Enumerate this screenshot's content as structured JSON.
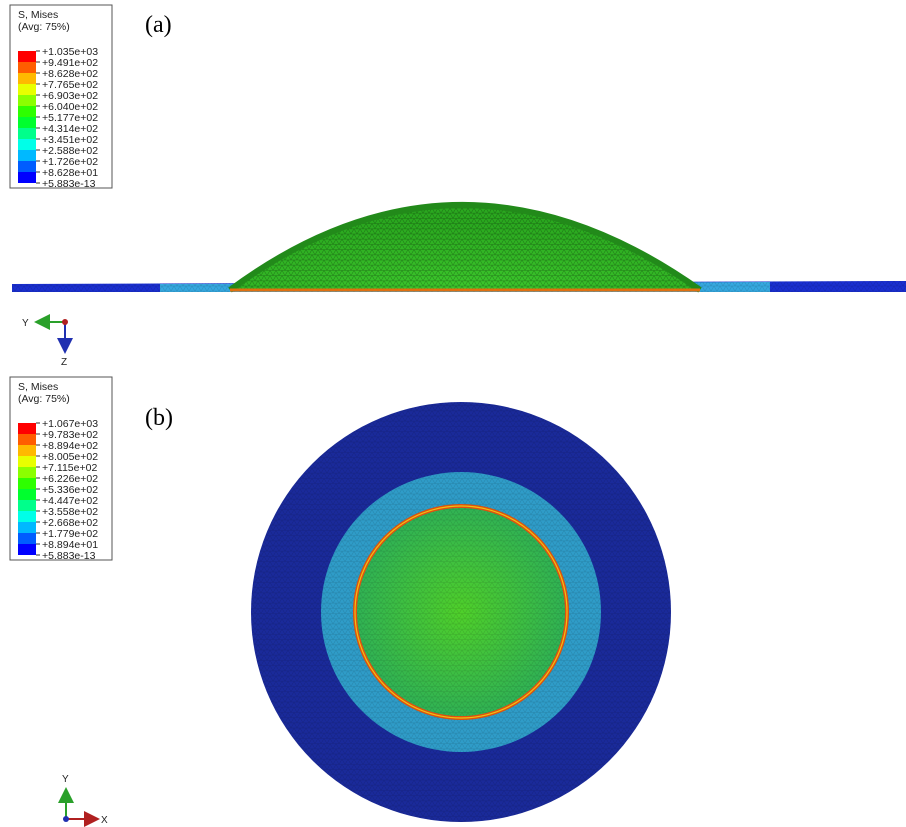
{
  "panels": [
    {
      "label": "(a)",
      "legend": {
        "title": "S, Mises",
        "subtitle": "(Avg: 75%)",
        "values": [
          "+1.035e+03",
          "+9.491e+02",
          "+8.628e+02",
          "+7.765e+02",
          "+6.903e+02",
          "+6.040e+02",
          "+5.177e+02",
          "+4.314e+02",
          "+3.451e+02",
          "+2.588e+02",
          "+1.726e+02",
          "+8.628e+01",
          "+5.883e-13"
        ]
      },
      "axes": {
        "horizontal": "Y",
        "vertical": "Z"
      }
    },
    {
      "label": "(b)",
      "legend": {
        "title": "S, Mises",
        "subtitle": "(Avg: 75%)",
        "values": [
          "+1.067e+03",
          "+9.783e+02",
          "+8.894e+02",
          "+8.005e+02",
          "+7.115e+02",
          "+6.226e+02",
          "+5.336e+02",
          "+4.447e+02",
          "+3.558e+02",
          "+2.668e+02",
          "+1.779e+02",
          "+8.894e+01",
          "+5.883e-13"
        ]
      },
      "axes": {
        "horizontal": "X",
        "vertical": "Y"
      }
    }
  ]
}
